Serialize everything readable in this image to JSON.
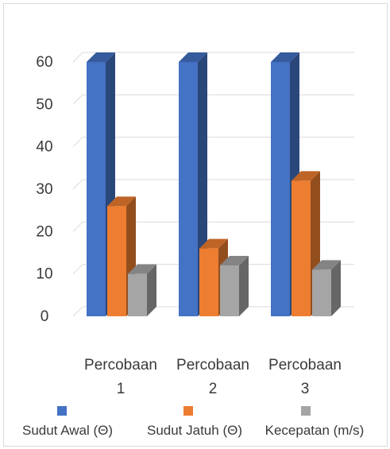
{
  "chart_data": {
    "type": "bar",
    "style": "3d-clustered-column",
    "categories": [
      [
        "Percobaan",
        "1"
      ],
      [
        "Percobaan",
        "2"
      ],
      [
        "Percobaan",
        "3"
      ]
    ],
    "series": [
      {
        "name": "Sudut Awal (Θ)",
        "values": [
          60,
          60,
          60
        ],
        "color": "#4472C4"
      },
      {
        "name": "Sudut Jatuh (Θ)",
        "values": [
          26,
          16,
          32
        ],
        "color": "#ED7D31"
      },
      {
        "name": "Kecepatan (m/s)",
        "values": [
          10,
          12,
          11
        ],
        "color": "#A5A5A5"
      }
    ],
    "yticks": [
      0,
      10,
      20,
      30,
      40,
      50,
      60
    ],
    "ylim": [
      0,
      60
    ],
    "grid": true,
    "legend_position": "bottom"
  }
}
